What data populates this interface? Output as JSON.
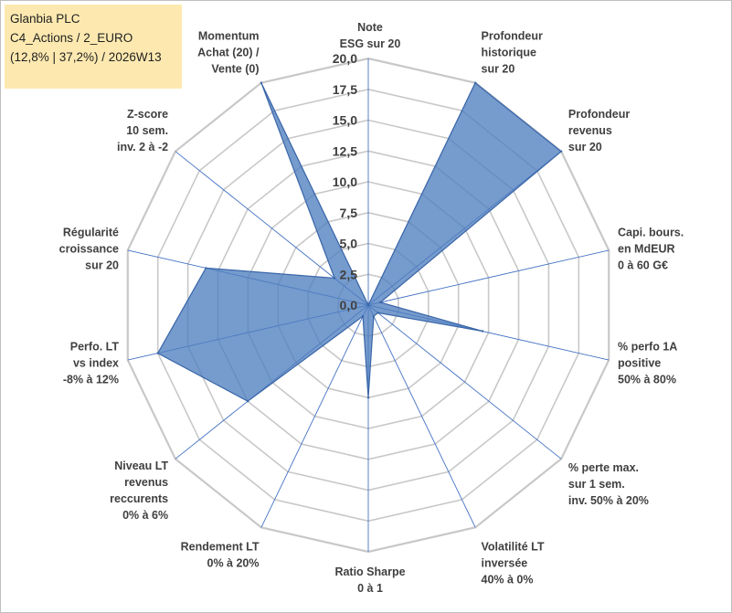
{
  "title": {
    "line1": "Glanbia PLC",
    "line2": "C4_Actions / 2_EURO",
    "line3": "(12,8% | 37,2%) / 2026W13"
  },
  "colors": {
    "fill": "#4f7fbf",
    "stroke": "#3a66a8",
    "grid": "#c8c8c8",
    "spoke": "#4472c4",
    "title_bg": "#fde9b0"
  },
  "chart_data": {
    "type": "radar",
    "rmin": 0,
    "rmax": 20,
    "step": 2.5,
    "tick_labels": [
      "0,0",
      "2,5",
      "5,0",
      "7,5",
      "10,0",
      "12,5",
      "15,0",
      "17,5",
      "20,0"
    ],
    "axes": [
      {
        "lines": [
          "Note",
          "ESG sur 20"
        ],
        "value": 0
      },
      {
        "lines": [
          "Profondeur",
          "historique",
          "sur 20"
        ],
        "value": 20
      },
      {
        "lines": [
          "Profondeur",
          "revenus",
          "sur 20"
        ],
        "value": 20
      },
      {
        "lines": [
          "Capi. bours.",
          "en MdEUR",
          "0 à 60 G€"
        ],
        "value": 1.0
      },
      {
        "lines": [
          "% perfo 1A",
          "positive",
          "50% à 80%"
        ],
        "value": 9.5
      },
      {
        "lines": [
          "% perte max.",
          "sur 1 sem.",
          "inv. 50% à 20%"
        ],
        "value": 1.0
      },
      {
        "lines": [
          "Volatilité LT",
          "inversée",
          "40% à 0%"
        ],
        "value": 1.0
      },
      {
        "lines": [
          "Ratio Sharpe",
          "0 à 1"
        ],
        "value": 7.5
      },
      {
        "lines": [
          "Rendement LT",
          "0% à 20%"
        ],
        "value": 1.0
      },
      {
        "lines": [
          "Niveau LT",
          "revenus",
          "reccurents",
          "0% à 6%"
        ],
        "value": 12.5
      },
      {
        "lines": [
          "Perfo. LT",
          "vs index",
          "-8% à 12%"
        ],
        "value": 17.5
      },
      {
        "lines": [
          "Régularité",
          "croissance",
          "sur 20"
        ],
        "value": 13.5
      },
      {
        "lines": [
          "Z-score",
          "10 sem.",
          "inv. 2 à -2"
        ],
        "value": 3.5
      },
      {
        "lines": [
          "Momentum",
          "Achat (20) /",
          "Vente (0)"
        ],
        "value": 20
      }
    ]
  }
}
